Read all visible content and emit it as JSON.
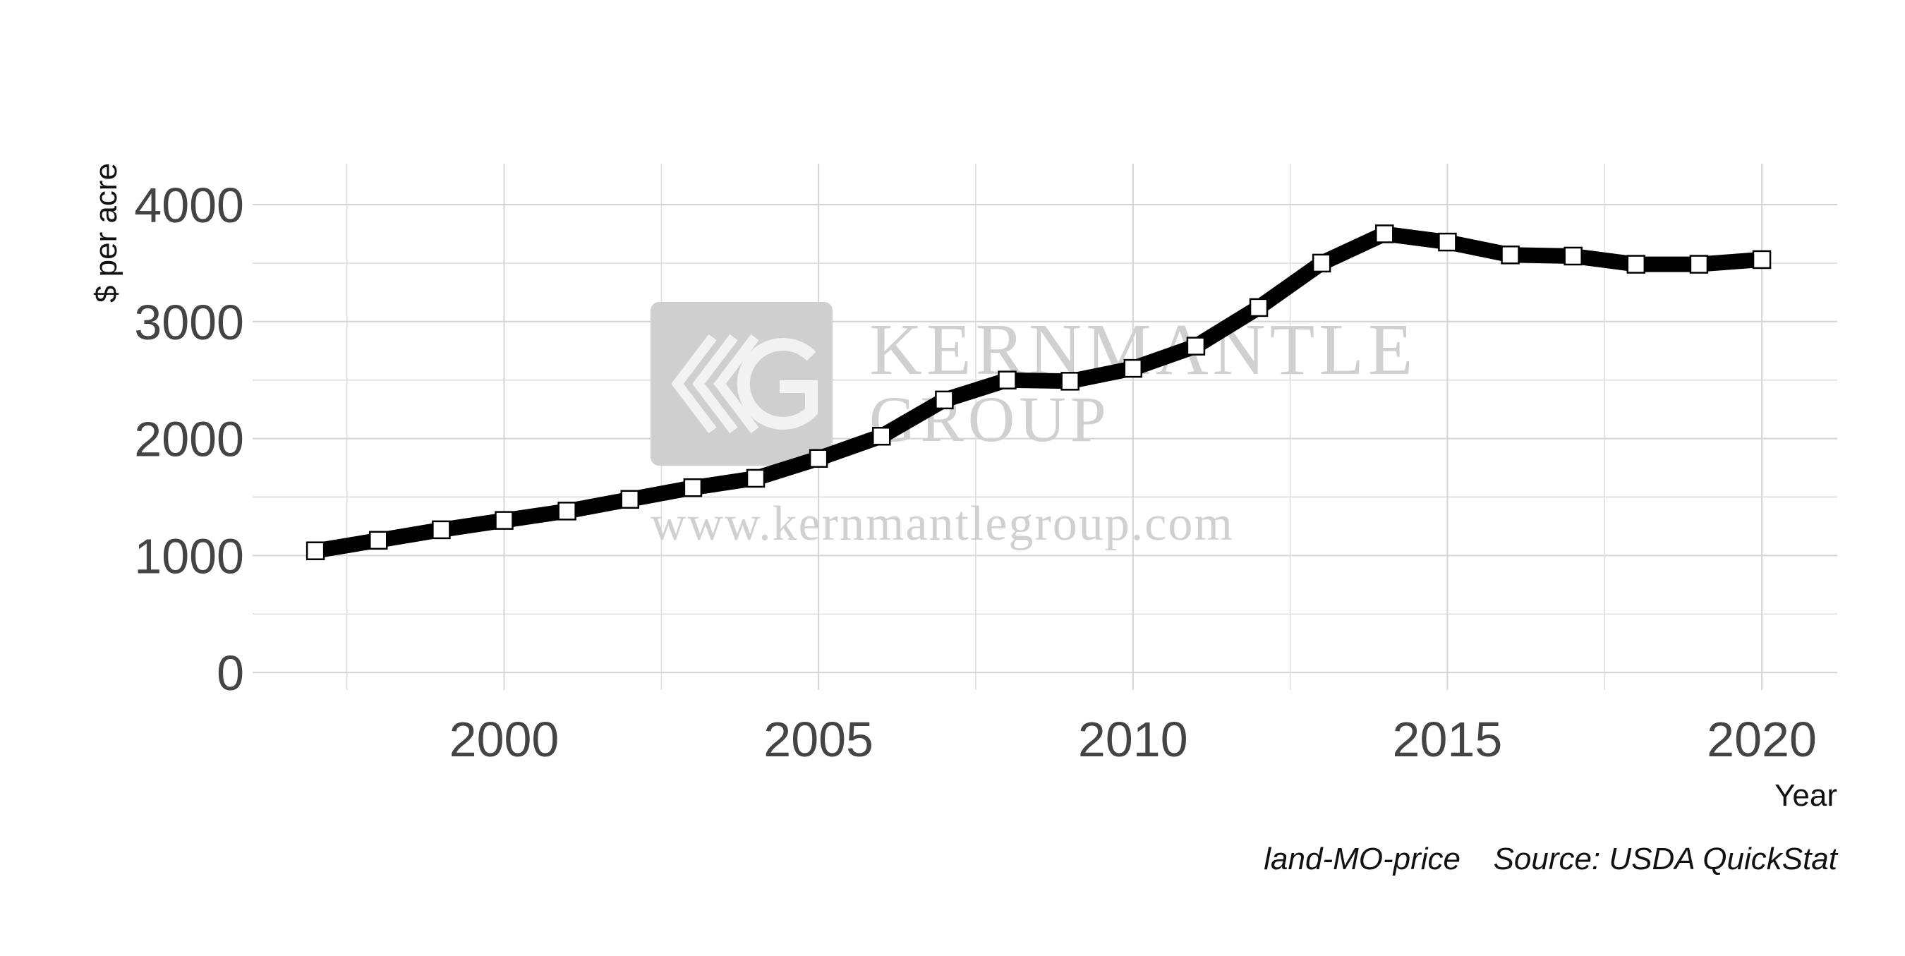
{
  "chart_data": {
    "type": "line",
    "title": "",
    "xlabel": "Year",
    "ylabel": "$ per acre",
    "x": [
      1997,
      1998,
      1999,
      2000,
      2001,
      2002,
      2003,
      2004,
      2005,
      2006,
      2007,
      2008,
      2009,
      2010,
      2011,
      2012,
      2013,
      2014,
      2015,
      2016,
      2017,
      2018,
      2019,
      2020
    ],
    "series": [
      {
        "values": [
          1040,
          1130,
          1220,
          1300,
          1380,
          1480,
          1580,
          1660,
          1830,
          2020,
          2330,
          2500,
          2490,
          2600,
          2790,
          3120,
          3500,
          3750,
          3680,
          3570,
          3560,
          3490,
          3490,
          3530
        ]
      }
    ],
    "xlim": [
      1996,
      2021.2
    ],
    "ylim": [
      -150,
      4350
    ],
    "x_ticks": [
      2000,
      2005,
      2010,
      2015,
      2020
    ],
    "y_ticks": [
      0,
      1000,
      2000,
      3000,
      4000
    ],
    "grid": true,
    "marker": "square",
    "line_color": "#000000",
    "marker_fill": "#ffffff",
    "legend": "none"
  },
  "captions": {
    "code": "land-MO-price",
    "source": "Source: USDA QuickStat"
  },
  "watermark": {
    "logo_letters": "KG",
    "line1": "KERNMANTLE",
    "line2": "GROUP",
    "url": "www.kernmantlegroup.com",
    "color": "#cccccc"
  }
}
